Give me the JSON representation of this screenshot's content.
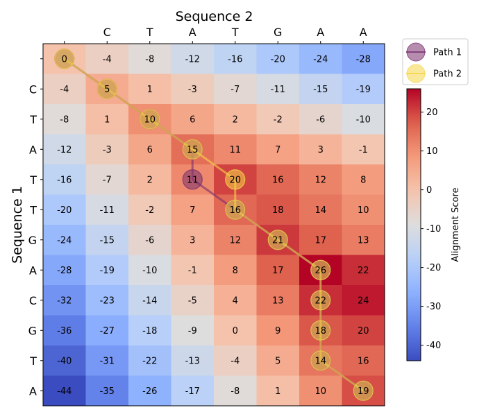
{
  "chart_data": {
    "type": "heatmap",
    "title": "Sequence 2",
    "xlabel": "Sequence 2",
    "ylabel": "Sequence 1",
    "x_categories": [
      "",
      "C",
      "T",
      "A",
      "T",
      "G",
      "A",
      "A"
    ],
    "y_categories": [
      "",
      "C",
      "T",
      "A",
      "T",
      "T",
      "G",
      "A",
      "C",
      "G",
      "T",
      "A"
    ],
    "values": [
      [
        0,
        -4,
        -8,
        -12,
        -16,
        -20,
        -24,
        -28
      ],
      [
        -4,
        5,
        1,
        -3,
        -7,
        -11,
        -15,
        -19
      ],
      [
        -8,
        1,
        10,
        6,
        2,
        -2,
        -6,
        -10
      ],
      [
        -12,
        -3,
        6,
        15,
        11,
        7,
        3,
        -1
      ],
      [
        -16,
        -7,
        2,
        11,
        20,
        16,
        12,
        8
      ],
      [
        -20,
        -11,
        -2,
        7,
        16,
        18,
        14,
        10
      ],
      [
        -24,
        -15,
        -6,
        3,
        12,
        21,
        17,
        13
      ],
      [
        -28,
        -19,
        -10,
        -1,
        8,
        17,
        26,
        22
      ],
      [
        -32,
        -23,
        -14,
        -5,
        4,
        13,
        22,
        24
      ],
      [
        -36,
        -27,
        -18,
        -9,
        0,
        9,
        18,
        20
      ],
      [
        -40,
        -31,
        -22,
        -13,
        -4,
        5,
        14,
        16
      ],
      [
        -44,
        -35,
        -26,
        -17,
        -8,
        1,
        10,
        19
      ]
    ],
    "colorbar": {
      "label": "Alignment Score",
      "min": -44,
      "max": 26,
      "ticks": [
        -40,
        -30,
        -20,
        -10,
        0,
        10,
        20
      ]
    },
    "colormap": "coolwarm",
    "legend_position": "upper-right outside",
    "paths": [
      {
        "name": "Path 1",
        "color": "#7a2f6e",
        "cells": [
          [
            0,
            0
          ],
          [
            1,
            1
          ],
          [
            2,
            2
          ],
          [
            3,
            3
          ],
          [
            4,
            3
          ],
          [
            5,
            4
          ],
          [
            6,
            5
          ],
          [
            7,
            6
          ],
          [
            8,
            6
          ],
          [
            9,
            6
          ],
          [
            10,
            6
          ],
          [
            11,
            7
          ]
        ]
      },
      {
        "name": "Path 2",
        "color": "#f5d547",
        "cells": [
          [
            0,
            0
          ],
          [
            1,
            1
          ],
          [
            2,
            2
          ],
          [
            3,
            3
          ],
          [
            4,
            4
          ],
          [
            5,
            4
          ],
          [
            6,
            5
          ],
          [
            7,
            6
          ],
          [
            8,
            6
          ],
          [
            9,
            6
          ],
          [
            10,
            6
          ],
          [
            11,
            7
          ]
        ]
      }
    ]
  }
}
